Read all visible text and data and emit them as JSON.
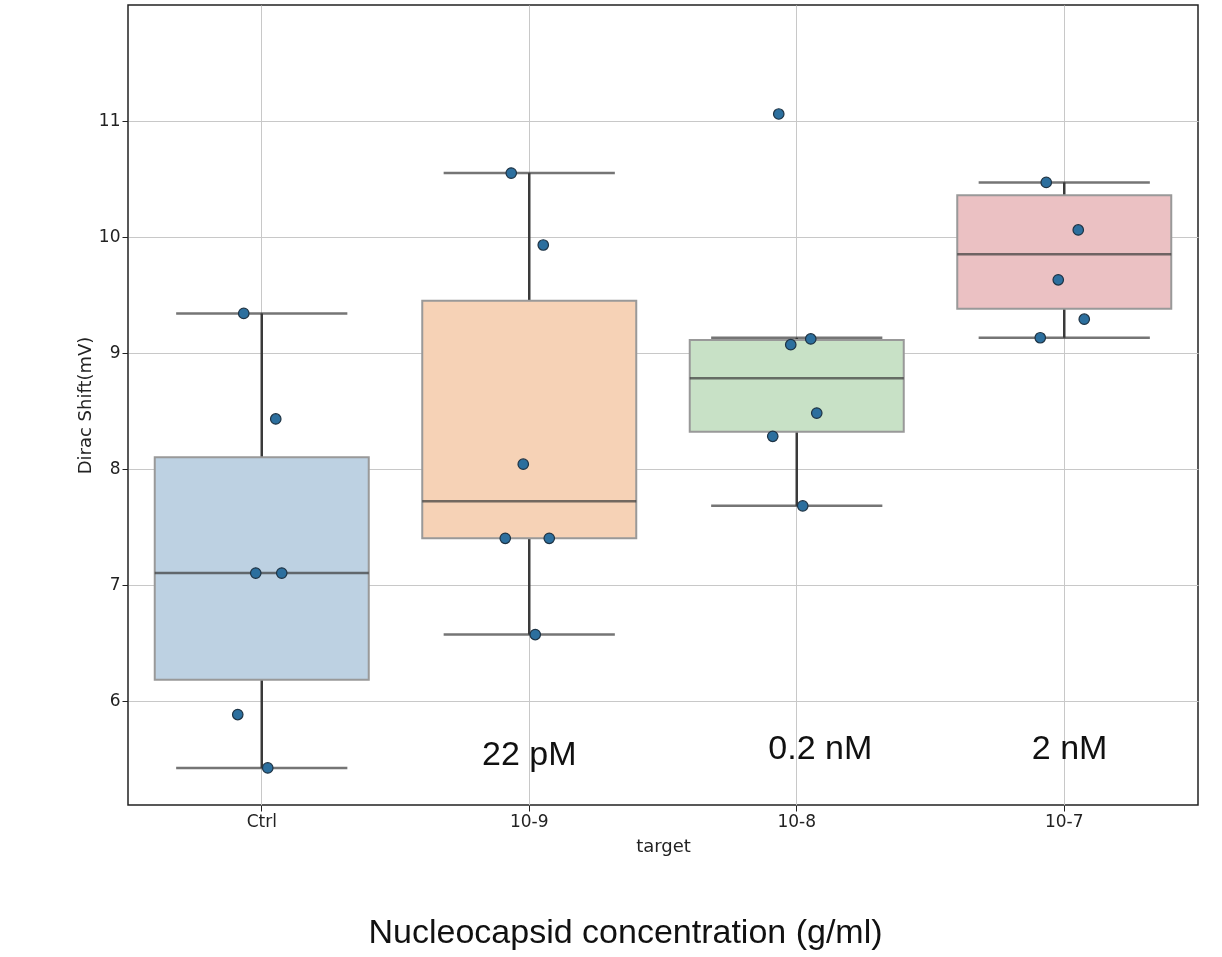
{
  "chart_data": {
    "type": "box",
    "xlabel": "target",
    "ylabel": "Dirac Shift(mV)",
    "categories": [
      "Ctrl",
      "10-9",
      "10-8",
      "10-7"
    ],
    "boxes": [
      {
        "low": 5.42,
        "q1": 6.18,
        "median": 7.1,
        "q3": 8.1,
        "high": 9.34
      },
      {
        "low": 6.57,
        "q1": 7.4,
        "median": 7.72,
        "q3": 9.45,
        "high": 10.55
      },
      {
        "low": 7.68,
        "q1": 8.32,
        "median": 8.78,
        "q3": 9.11,
        "high": 9.13
      },
      {
        "low": 9.13,
        "q1": 9.38,
        "median": 9.85,
        "q3": 10.36,
        "high": 10.47
      }
    ],
    "colors": [
      "#bdd1e2",
      "#f6d2b6",
      "#c8e1c6",
      "#ebc1c3"
    ],
    "series": [
      {
        "type": "scatter",
        "color": "#2c6f9e",
        "x": [
          "Ctrl",
          "Ctrl",
          "Ctrl",
          "Ctrl",
          "Ctrl",
          "Ctrl",
          "10-9",
          "10-9",
          "10-9",
          "10-9",
          "10-9",
          "10-9",
          "10-8",
          "10-8",
          "10-8",
          "10-8",
          "10-8",
          "10-8",
          "10-7",
          "10-7",
          "10-7",
          "10-7",
          "10-7"
        ],
        "values": [
          9.34,
          8.43,
          7.1,
          7.1,
          5.88,
          5.42,
          10.55,
          9.93,
          8.04,
          7.4,
          7.4,
          6.57,
          11.06,
          9.12,
          9.07,
          8.48,
          8.28,
          7.68,
          10.47,
          10.06,
          9.63,
          9.29,
          9.13
        ]
      }
    ],
    "ylim": [
      5.1,
      12.0
    ],
    "yticks": [
      6,
      7,
      8,
      9,
      10,
      11
    ],
    "grid": true,
    "marker": "circle",
    "annotations": [
      "22 pM",
      "0.2 nM",
      "2 nM",
      "Nucleocapsid concentration (g/ml)"
    ]
  }
}
